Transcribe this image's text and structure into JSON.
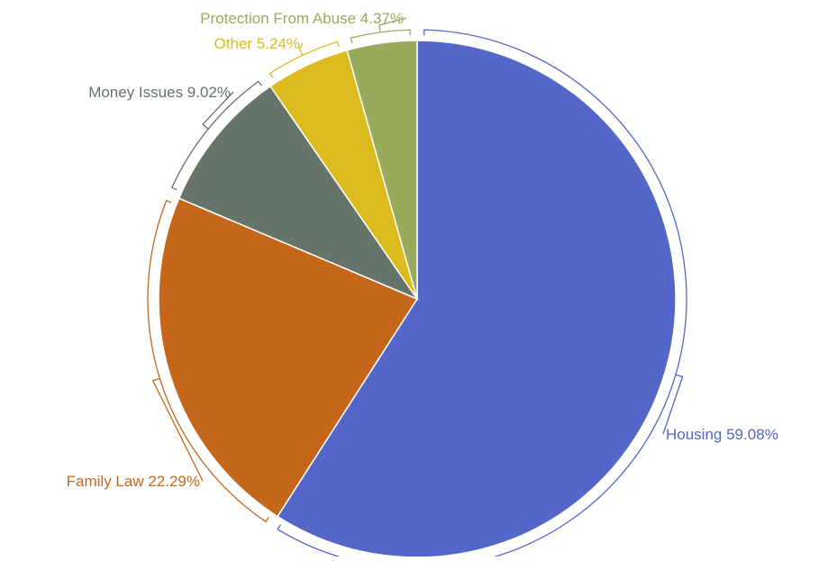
{
  "chart_data": {
    "type": "pie",
    "title": "",
    "slices": [
      {
        "label": "Housing",
        "value": 59.08,
        "display": "59.08%",
        "color": "#5466c7"
      },
      {
        "label": "Family Law",
        "value": 22.29,
        "display": "22.29%",
        "color": "#c5671b"
      },
      {
        "label": "Money Issues",
        "value": 9.02,
        "display": "9.02%",
        "color": "#66746a"
      },
      {
        "label": "Other",
        "value": 5.24,
        "display": "5.24%",
        "color": "#dbbb1e"
      },
      {
        "label": "Protection From Abuse",
        "value": 4.37,
        "display": "4.37%",
        "color": "#97ab5b"
      }
    ],
    "start_angle": "12 o'clock",
    "direction": "clockwise",
    "label_style": "outside, bracket leaders, text colored by slice",
    "legend": "none"
  }
}
